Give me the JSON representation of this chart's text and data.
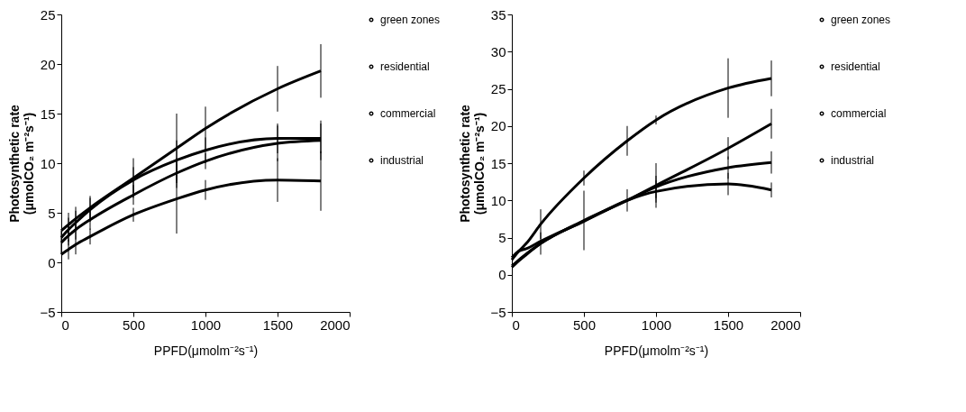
{
  "chart_data": [
    {
      "type": "line",
      "xlabel": "PPFD(μmolm⁻²s⁻¹)",
      "ylabel": "Photosynthetic rate\n(μmolCO₂ m⁻²s⁻¹)",
      "x": [
        0,
        50,
        100,
        200,
        500,
        800,
        1000,
        1500,
        1800
      ],
      "xlim": [
        0,
        2000
      ],
      "xticks": [
        0,
        500,
        1000,
        1500,
        2000
      ],
      "ylim": [
        -5,
        25
      ],
      "yticks": [
        -5,
        0,
        5,
        10,
        15,
        20,
        25
      ],
      "grid": false,
      "legend": "right",
      "line_style": "solid",
      "series": [
        {
          "name": "green zones",
          "color": "#000000",
          "values": [
            3.2,
            3.8,
            4.4,
            5.5,
            8.5,
            11.5,
            13.5,
            17.5,
            19.3
          ],
          "errors": [
            null,
            1.2,
            1.2,
            1.2,
            2,
            3.5,
            2.2,
            2.3,
            2.7
          ]
        },
        {
          "name": "residential",
          "color": "#000000",
          "values": [
            2.5,
            3.3,
            4.0,
            5.3,
            8.3,
            10.3,
            11.3,
            12.5,
            12.5
          ],
          "errors": [
            null,
            1.2,
            1.2,
            1.2,
            1.3,
            2,
            1.3,
            1.5,
            1.5
          ]
        },
        {
          "name": "commercial",
          "color": "#000000",
          "values": [
            2.0,
            2.7,
            3.3,
            4.3,
            6.8,
            9.0,
            10.2,
            12.0,
            12.3
          ],
          "errors": [
            1.2,
            1,
            1,
            1,
            1,
            1.5,
            0.8,
            1.8,
            2
          ]
        },
        {
          "name": "industrial",
          "color": "#000000",
          "values": [
            0.8,
            1.3,
            1.8,
            2.6,
            4.8,
            6.4,
            7.3,
            8.3,
            8.2
          ],
          "errors": [
            null,
            1,
            1,
            0.8,
            0.7,
            3.5,
            1,
            2.2,
            3
          ]
        }
      ]
    },
    {
      "type": "line",
      "xlabel": "PPFD(μmolm⁻²s⁻¹)",
      "ylabel": "Photosynthetic rate\n(μmolCO₂ m⁻²s⁻¹)",
      "x": [
        0,
        50,
        100,
        200,
        500,
        800,
        1000,
        1500,
        1800
      ],
      "xlim": [
        0,
        2000
      ],
      "xticks": [
        0,
        500,
        1000,
        1500,
        2000
      ],
      "ylim": [
        -5,
        35
      ],
      "yticks": [
        -5,
        0,
        5,
        10,
        15,
        20,
        25,
        30,
        35
      ],
      "grid": false,
      "legend": "right",
      "line_style": "solid",
      "series": [
        {
          "name": "green zones",
          "color": "#000000",
          "values": [
            2.0,
            3.2,
            4.2,
            6.8,
            13.0,
            18.0,
            20.8,
            25.1,
            26.4
          ],
          "errors": [
            null,
            null,
            null,
            2,
            1,
            2,
            0.6,
            4,
            2.4
          ]
        },
        {
          "name": "residential",
          "color": "#000000",
          "values": [
            1.2,
            2.0,
            2.8,
            4.2,
            7.3,
            10.0,
            12.0,
            17.0,
            20.3
          ],
          "errors": [
            null,
            null,
            null,
            1.5,
            4,
            1.5,
            3,
            1.5,
            2
          ]
        },
        {
          "name": "commercial",
          "color": "#000000",
          "values": [
            1.0,
            1.9,
            2.7,
            4.2,
            7.2,
            10.0,
            11.8,
            14.4,
            15.1
          ],
          "errors": [
            null,
            null,
            null,
            null,
            null,
            null,
            1.5,
            1.5,
            1.5
          ]
        },
        {
          "name": "industrial",
          "color": "#000000",
          "values": [
            2.3,
            3.2,
            3.5,
            4.5,
            7.2,
            10.0,
            11.2,
            12.2,
            11.4
          ],
          "errors": [
            null,
            null,
            null,
            null,
            null,
            null,
            1.5,
            1.5,
            1
          ]
        }
      ]
    }
  ]
}
